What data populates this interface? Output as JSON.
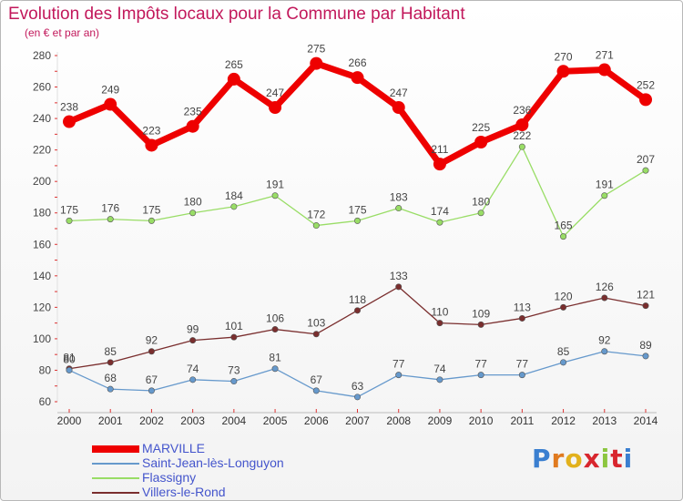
{
  "title": "Evolution des Impôts locaux pour la Commune par Habitant",
  "subtitle": "(en € et par an)",
  "brand": "Proxiti",
  "chart_data": {
    "type": "line",
    "title": "Evolution des Impôts locaux pour la Commune par Habitant",
    "ylabel": "(en € et par an)",
    "xlabel": "",
    "ylim": [
      60,
      280
    ],
    "yticks": [
      60,
      80,
      100,
      120,
      140,
      160,
      180,
      200,
      220,
      240,
      260,
      280
    ],
    "grid": false,
    "legend_position": "bottom-left",
    "categories": [
      "2000",
      "2001",
      "2002",
      "2003",
      "2004",
      "2005",
      "2006",
      "2007",
      "2008",
      "2009",
      "2010",
      "2011",
      "2012",
      "2013",
      "2014"
    ],
    "series": [
      {
        "name": "MARVILLE",
        "color": "#ee0000",
        "values": [
          238,
          249,
          223,
          235,
          265,
          247,
          275,
          266,
          247,
          211,
          225,
          236,
          270,
          271,
          252
        ]
      },
      {
        "name": "Saint-Jean-lès-Longuyon",
        "color": "#6699cc",
        "values": [
          80,
          68,
          67,
          74,
          73,
          81,
          67,
          63,
          77,
          74,
          77,
          77,
          85,
          92,
          89
        ]
      },
      {
        "name": "Flassigny",
        "color": "#99dd66",
        "values": [
          175,
          176,
          175,
          180,
          184,
          191,
          172,
          175,
          183,
          174,
          180,
          222,
          165,
          191,
          207
        ]
      },
      {
        "name": "Villers-le-Rond",
        "color": "#7a2e2e",
        "values": [
          81,
          85,
          92,
          99,
          101,
          106,
          103,
          118,
          133,
          110,
          109,
          113,
          120,
          126,
          121
        ]
      }
    ]
  }
}
